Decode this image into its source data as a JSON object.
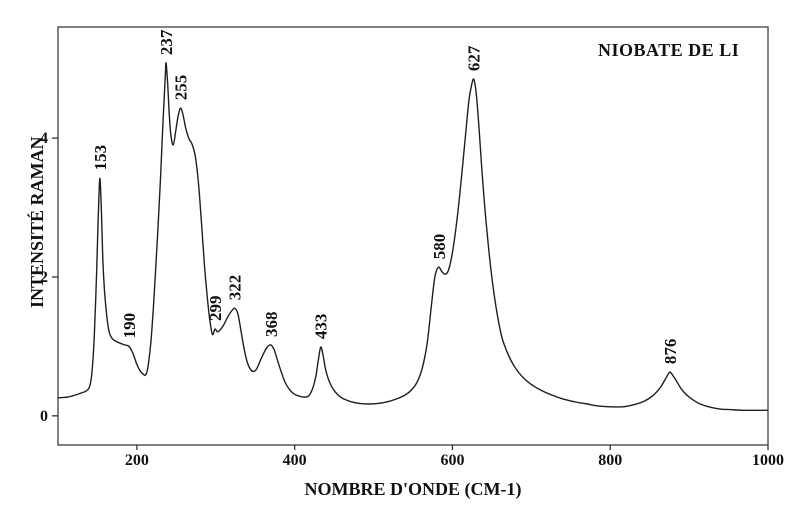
{
  "window": {
    "title": "NIOBATE DE LI"
  },
  "colors": {
    "background": "#ffffff",
    "frame": "#4d4d4d",
    "curve": "#1f1f1f",
    "text": "#111111",
    "tick": "#333333"
  },
  "chart_data": {
    "type": "line",
    "title": "NIOBATE DE LI",
    "xlabel": "NOMBRE D'ONDE (CM-1)",
    "ylabel": "INTENSITÉ RAMAN",
    "xlim": [
      100,
      1000
    ],
    "ylim": [
      -0.42,
      5.6
    ],
    "x_ticks": [
      200,
      400,
      600,
      800,
      1000
    ],
    "y_ticks": [
      0,
      2,
      4
    ],
    "grid": false,
    "legend": "none",
    "frame": "full-box",
    "peak_labels": [
      {
        "label": "153",
        "x": 153,
        "intensity": 3.42
      },
      {
        "label": "190",
        "x": 190,
        "intensity": 1.0
      },
      {
        "label": "237",
        "x": 237,
        "intensity": 5.08
      },
      {
        "label": "255",
        "x": 255,
        "intensity": 4.43
      },
      {
        "label": "299",
        "x": 299,
        "intensity": 1.25
      },
      {
        "label": "322",
        "x": 324,
        "intensity": 1.55
      },
      {
        "label": "368",
        "x": 370,
        "intensity": 1.02
      },
      {
        "label": "433",
        "x": 433,
        "intensity": 0.99
      },
      {
        "label": "580",
        "x": 583,
        "intensity": 2.14
      },
      {
        "label": "627",
        "x": 627,
        "intensity": 4.85
      },
      {
        "label": "876",
        "x": 876,
        "intensity": 0.63
      }
    ],
    "curve_points": [
      [
        100,
        0.26
      ],
      [
        112,
        0.27
      ],
      [
        122,
        0.3
      ],
      [
        130,
        0.33
      ],
      [
        136,
        0.36
      ],
      [
        140,
        0.42
      ],
      [
        143,
        0.62
      ],
      [
        146,
        1.15
      ],
      [
        149,
        2.1
      ],
      [
        151,
        2.85
      ],
      [
        153,
        3.42
      ],
      [
        155,
        2.95
      ],
      [
        157,
        2.2
      ],
      [
        159,
        1.8
      ],
      [
        162,
        1.42
      ],
      [
        165,
        1.2
      ],
      [
        169,
        1.11
      ],
      [
        174,
        1.07
      ],
      [
        180,
        1.04
      ],
      [
        185,
        1.02
      ],
      [
        190,
        1.0
      ],
      [
        195,
        0.9
      ],
      [
        200,
        0.74
      ],
      [
        204,
        0.65
      ],
      [
        208,
        0.6
      ],
      [
        211,
        0.59
      ],
      [
        214,
        0.7
      ],
      [
        218,
        1.1
      ],
      [
        222,
        1.75
      ],
      [
        226,
        2.55
      ],
      [
        230,
        3.45
      ],
      [
        233,
        4.2
      ],
      [
        236,
        4.9
      ],
      [
        237,
        5.08
      ],
      [
        239,
        4.78
      ],
      [
        241,
        4.35
      ],
      [
        243,
        4.05
      ],
      [
        246,
        3.9
      ],
      [
        249,
        4.08
      ],
      [
        252,
        4.3
      ],
      [
        255,
        4.43
      ],
      [
        258,
        4.36
      ],
      [
        262,
        4.14
      ],
      [
        266,
        3.99
      ],
      [
        270,
        3.91
      ],
      [
        274,
        3.74
      ],
      [
        278,
        3.36
      ],
      [
        282,
        2.76
      ],
      [
        286,
        2.12
      ],
      [
        290,
        1.62
      ],
      [
        293,
        1.33
      ],
      [
        296,
        1.17
      ],
      [
        299,
        1.25
      ],
      [
        302,
        1.21
      ],
      [
        305,
        1.23
      ],
      [
        310,
        1.31
      ],
      [
        315,
        1.42
      ],
      [
        320,
        1.51
      ],
      [
        324,
        1.55
      ],
      [
        328,
        1.47
      ],
      [
        332,
        1.22
      ],
      [
        336,
        0.96
      ],
      [
        340,
        0.77
      ],
      [
        344,
        0.67
      ],
      [
        348,
        0.64
      ],
      [
        352,
        0.68
      ],
      [
        357,
        0.81
      ],
      [
        362,
        0.93
      ],
      [
        366,
        1.0
      ],
      [
        370,
        1.02
      ],
      [
        374,
        0.95
      ],
      [
        378,
        0.81
      ],
      [
        383,
        0.63
      ],
      [
        388,
        0.48
      ],
      [
        394,
        0.37
      ],
      [
        400,
        0.31
      ],
      [
        407,
        0.28
      ],
      [
        413,
        0.27
      ],
      [
        418,
        0.29
      ],
      [
        423,
        0.4
      ],
      [
        427,
        0.58
      ],
      [
        430,
        0.8
      ],
      [
        433,
        0.99
      ],
      [
        436,
        0.87
      ],
      [
        439,
        0.68
      ],
      [
        443,
        0.52
      ],
      [
        448,
        0.4
      ],
      [
        454,
        0.31
      ],
      [
        461,
        0.25
      ],
      [
        470,
        0.21
      ],
      [
        481,
        0.18
      ],
      [
        494,
        0.17
      ],
      [
        507,
        0.18
      ],
      [
        520,
        0.21
      ],
      [
        533,
        0.26
      ],
      [
        545,
        0.34
      ],
      [
        555,
        0.48
      ],
      [
        562,
        0.7
      ],
      [
        568,
        1.05
      ],
      [
        573,
        1.55
      ],
      [
        577,
        1.95
      ],
      [
        580,
        2.1
      ],
      [
        583,
        2.14
      ],
      [
        587,
        2.07
      ],
      [
        591,
        2.04
      ],
      [
        595,
        2.1
      ],
      [
        600,
        2.35
      ],
      [
        606,
        2.85
      ],
      [
        612,
        3.5
      ],
      [
        617,
        4.1
      ],
      [
        621,
        4.55
      ],
      [
        624,
        4.75
      ],
      [
        627,
        4.85
      ],
      [
        630,
        4.66
      ],
      [
        633,
        4.25
      ],
      [
        637,
        3.6
      ],
      [
        641,
        3.0
      ],
      [
        646,
        2.4
      ],
      [
        651,
        1.9
      ],
      [
        657,
        1.45
      ],
      [
        663,
        1.12
      ],
      [
        670,
        0.9
      ],
      [
        678,
        0.72
      ],
      [
        688,
        0.57
      ],
      [
        699,
        0.46
      ],
      [
        712,
        0.37
      ],
      [
        726,
        0.3
      ],
      [
        741,
        0.24
      ],
      [
        756,
        0.2
      ],
      [
        771,
        0.17
      ],
      [
        786,
        0.14
      ],
      [
        801,
        0.13
      ],
      [
        816,
        0.13
      ],
      [
        830,
        0.16
      ],
      [
        843,
        0.21
      ],
      [
        854,
        0.29
      ],
      [
        863,
        0.4
      ],
      [
        870,
        0.53
      ],
      [
        874,
        0.61
      ],
      [
        876,
        0.63
      ],
      [
        879,
        0.59
      ],
      [
        884,
        0.5
      ],
      [
        890,
        0.39
      ],
      [
        897,
        0.3
      ],
      [
        905,
        0.23
      ],
      [
        914,
        0.17
      ],
      [
        925,
        0.13
      ],
      [
        938,
        0.1
      ],
      [
        952,
        0.09
      ],
      [
        968,
        0.08
      ],
      [
        984,
        0.08
      ],
      [
        1000,
        0.08
      ]
    ]
  }
}
